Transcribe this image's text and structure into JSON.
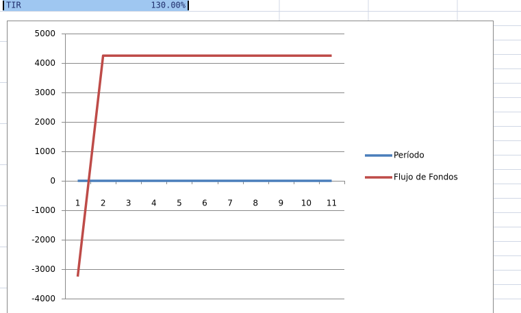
{
  "sheet": {
    "label": "TIR",
    "value": "130.00%"
  },
  "chart_data": {
    "type": "line",
    "categories": [
      "1",
      "2",
      "3",
      "4",
      "5",
      "6",
      "7",
      "8",
      "9",
      "10",
      "11"
    ],
    "series": [
      {
        "name": "Período",
        "color": "#4a7ebb",
        "values": [
          0,
          0,
          0,
          0,
          0,
          0,
          0,
          0,
          0,
          0,
          0
        ]
      },
      {
        "name": "Flujo de Fondos",
        "color": "#be4b48",
        "values": [
          -3250,
          4250,
          4250,
          4250,
          4250,
          4250,
          4250,
          4250,
          4250,
          4250,
          4250
        ]
      }
    ],
    "ylim": [
      -4000,
      5000
    ],
    "yticks": [
      -4000,
      -3000,
      -2000,
      -1000,
      0,
      1000,
      2000,
      3000,
      4000,
      5000
    ],
    "grid": true,
    "legend": "right"
  }
}
